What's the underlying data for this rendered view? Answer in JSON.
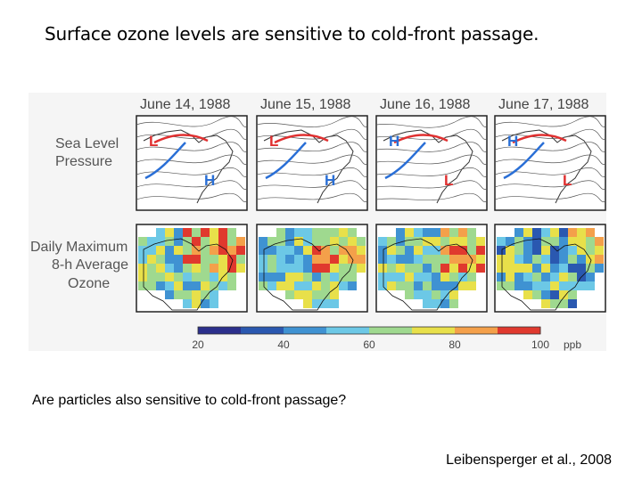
{
  "slide": {
    "title": "Surface ozone levels are sensitive to cold-front passage.",
    "question": "Are particles also sensitive to cold-front passage?",
    "citation": "Leibensperger et al., 2008"
  },
  "figure": {
    "dates": [
      "June 14, 1988",
      "June 15, 1988",
      "June 16, 1988",
      "June 17, 1988"
    ],
    "row_labels": {
      "pressure": [
        "Sea Level",
        "Pressure"
      ],
      "ozone": [
        "Daily Maximum",
        "8-h Average",
        "Ozone"
      ]
    },
    "pressure_markers": [
      [
        {
          "t": "L",
          "c": "#e03030"
        },
        {
          "t": "H",
          "c": "#2a6fd6"
        }
      ],
      [
        {
          "t": "L",
          "c": "#e03030"
        },
        {
          "t": "H",
          "c": "#2a6fd6"
        }
      ],
      [
        {
          "t": "H",
          "c": "#2a6fd6"
        },
        {
          "t": "L",
          "c": "#e03030"
        }
      ],
      [
        {
          "t": "H",
          "c": "#2a6fd6"
        },
        {
          "t": "L",
          "c": "#e03030"
        }
      ]
    ],
    "colorbar": {
      "ticks": [
        "20",
        "40",
        "60",
        "80",
        "100"
      ],
      "unit": "ppb",
      "colors": [
        "#2b2f8c",
        "#2a58b0",
        "#3f92d2",
        "#6cc8e6",
        "#9fd98f",
        "#e8e04a",
        "#f4a04a",
        "#e0392e"
      ]
    }
  }
}
